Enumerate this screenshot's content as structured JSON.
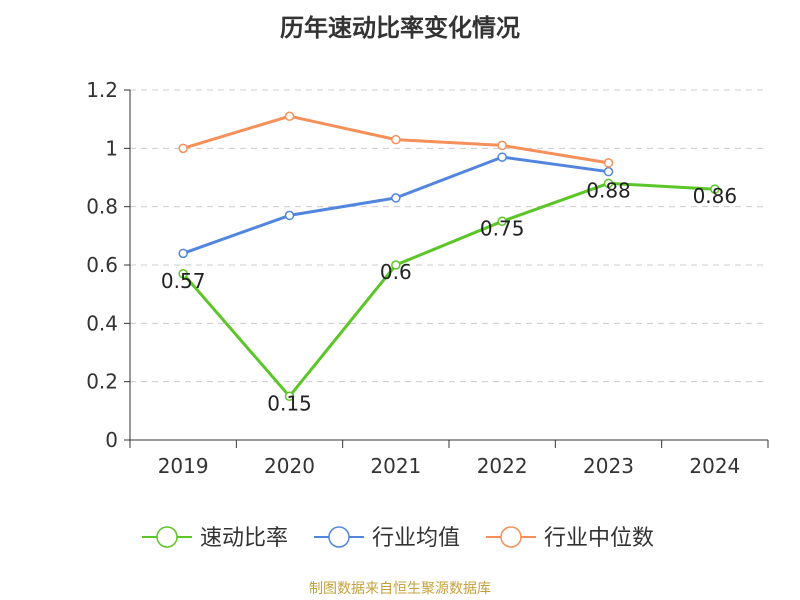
{
  "chart_data": {
    "type": "line",
    "title": "历年速动比率变化情况",
    "xlabel": "",
    "ylabel": "",
    "categories": [
      "2019",
      "2020",
      "2021",
      "2022",
      "2023",
      "2024"
    ],
    "ylim": [
      0,
      1.2
    ],
    "yticks": [
      0,
      0.2,
      0.4,
      0.6,
      0.8,
      1,
      1.2
    ],
    "ytick_labels": [
      "0",
      "0.2",
      "0.4",
      "0.6",
      "0.8",
      "1",
      "1.2"
    ],
    "grid": true,
    "legend_position": "bottom",
    "series": [
      {
        "name": "速动比率",
        "color": "#5cc528",
        "values": [
          0.57,
          0.15,
          0.6,
          0.75,
          0.88,
          0.86
        ],
        "labels": [
          "0.57",
          "0.15",
          "0.6",
          "0.75",
          "0.88",
          "0.86"
        ]
      },
      {
        "name": "行业均值",
        "color": "#5185de",
        "values": [
          0.64,
          0.77,
          0.83,
          0.97,
          0.92,
          null
        ]
      },
      {
        "name": "行业中位数",
        "color": "#f5905a",
        "values": [
          1.0,
          1.11,
          1.03,
          1.01,
          0.95,
          null
        ]
      }
    ],
    "source": "制图数据来自恒生聚源数据库"
  }
}
